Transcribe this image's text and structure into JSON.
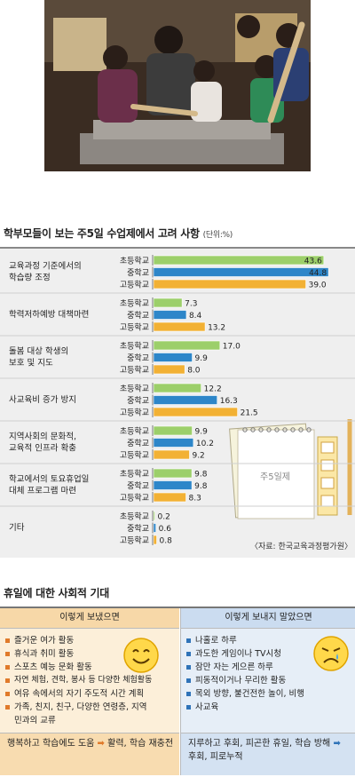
{
  "chart_data": {
    "type": "bar",
    "title": "학부모들이 보는 주5일 수업제에서 고려 사항",
    "unit": "(단위:%)",
    "series_names": [
      "초등학교",
      "중학교",
      "고등학교"
    ],
    "colors": [
      "#9ccf6a",
      "#2d86c9",
      "#f2b134"
    ],
    "xlim": [
      0,
      45
    ],
    "categories": [
      {
        "label_lines": [
          "교육과정 기준에서의",
          "학습량 조정"
        ],
        "values": [
          43.6,
          44.8,
          39.0
        ],
        "labels": [
          "43.6",
          "44.8",
          "39.0"
        ]
      },
      {
        "label_lines": [
          "학력저하예방 대책마련"
        ],
        "values": [
          7.3,
          8.4,
          13.2
        ],
        "labels": [
          "7.3",
          "8.4",
          "13.2"
        ]
      },
      {
        "label_lines": [
          "돌봄 대상 학생의",
          "보호 및 지도"
        ],
        "values": [
          17.0,
          9.9,
          8.0
        ],
        "labels": [
          "17.0",
          "9.9",
          "8.0"
        ]
      },
      {
        "label_lines": [
          "사교육비 증가 방지"
        ],
        "values": [
          12.2,
          16.3,
          21.5
        ],
        "labels": [
          "12.2",
          "16.3",
          "21.5"
        ]
      },
      {
        "label_lines": [
          "지역사회의 문화적,",
          "교육적 인프라 확충"
        ],
        "values": [
          9.9,
          10.2,
          9.2
        ],
        "labels": [
          "9.9",
          "10.2",
          "9.2"
        ]
      },
      {
        "label_lines": [
          "학교에서의 토요휴업일",
          "대체 프로그램 마련"
        ],
        "values": [
          9.8,
          9.8,
          8.3
        ],
        "labels": [
          "9.8",
          "9.8",
          "8.3"
        ]
      },
      {
        "label_lines": [
          "기타"
        ],
        "values": [
          0.2,
          0.6,
          0.8
        ],
        "labels": [
          "0.2",
          "0.6",
          "0.8"
        ]
      }
    ],
    "notepad_label": "주5일제",
    "source": "〈자료: 한국교육과정평가원〉"
  },
  "expectations": {
    "title": "휴일에 대한 사회적 기대",
    "good": {
      "heading": "이렇게 보냈으면",
      "items": [
        "즐거운 여가 활동",
        "휴식과 취미 활동",
        "스포츠 예능 문화 활동",
        "자연 체험, 견학, 봉사 등 다양한 체험활동",
        "여유 속에서의 자기 주도적 시간 계획",
        "가족, 친지, 친구, 다양한 연령층, 지역민과의 교류"
      ],
      "summary_before": "행복하고 학습에도 도움",
      "summary_after": "활력, 학습 재충전"
    },
    "bad": {
      "heading": "이렇게 보내지 말았으면",
      "items": [
        "나홀로 하루",
        "과도한 게임이나 TV시청",
        "잠만 자는 게으른 하루",
        "피동적이거나 무리한 활동",
        "목외 방향, 불건전한 놀이, 비행",
        "사교육"
      ],
      "summary_before": "지루하고 후회, 피곤한 휴일, 학습 방해",
      "summary_after": "후회, 피로누적"
    }
  }
}
